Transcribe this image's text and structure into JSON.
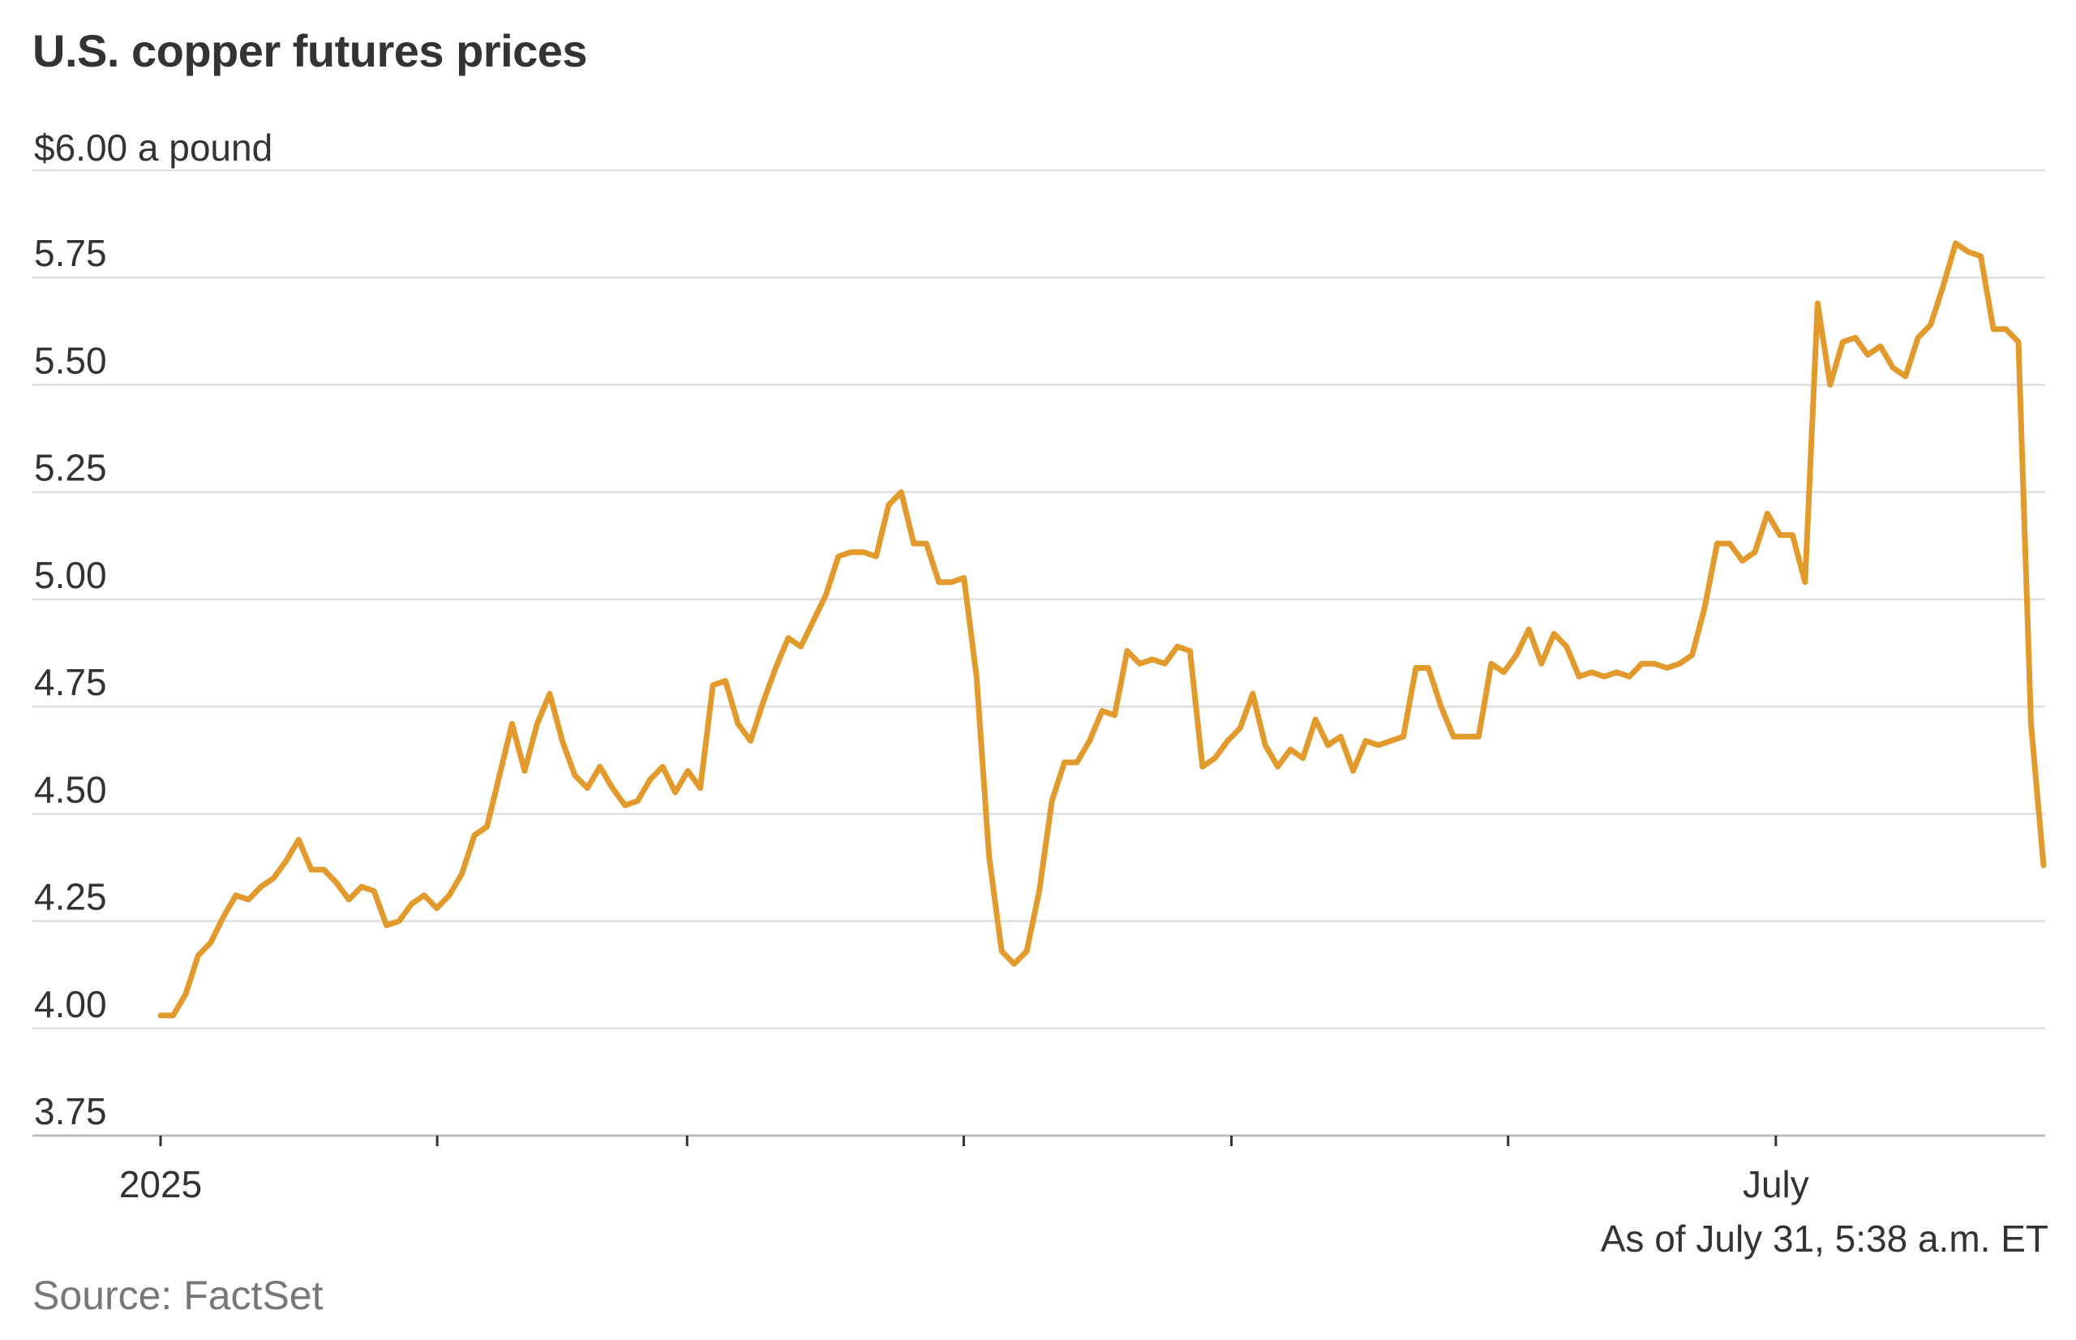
{
  "chart_data": {
    "type": "line",
    "title": "U.S. copper futures prices",
    "unit_label": "$6.00 a pound",
    "y_ticks": [
      "5.75",
      "5.50",
      "5.25",
      "5.00",
      "4.75",
      "4.50",
      "4.25",
      "4.00",
      "3.75"
    ],
    "y_tick_values": [
      5.75,
      5.5,
      5.25,
      5.0,
      4.75,
      4.5,
      4.25,
      4.0,
      3.75
    ],
    "top_gridline_value": 6.0,
    "ylim": [
      3.75,
      6.0
    ],
    "x_tick_labels": [
      "2025",
      "July"
    ],
    "x_range": [
      "2025-01-01",
      "2025-07-31"
    ],
    "x_tick_dates": [
      "2025-01-01",
      "2025-02-01",
      "2025-03-01",
      "2025-04-01",
      "2025-05-01",
      "2025-06-01",
      "2025-07-01"
    ],
    "grid": true,
    "series": [
      {
        "color": "#e39a2c",
        "values": [
          4.03,
          4.03,
          4.08,
          4.17,
          4.2,
          4.26,
          4.31,
          4.3,
          4.33,
          4.35,
          4.39,
          4.44,
          4.37,
          4.37,
          4.34,
          4.3,
          4.33,
          4.32,
          4.24,
          4.25,
          4.29,
          4.31,
          4.28,
          4.31,
          4.36,
          4.45,
          4.47,
          4.59,
          4.71,
          4.6,
          4.71,
          4.78,
          4.67,
          4.59,
          4.56,
          4.61,
          4.56,
          4.52,
          4.53,
          4.58,
          4.61,
          4.55,
          4.6,
          4.56,
          4.8,
          4.81,
          4.71,
          4.67,
          4.76,
          4.84,
          4.91,
          4.89,
          4.95,
          5.01,
          5.1,
          5.11,
          5.11,
          5.1,
          5.22,
          5.25,
          5.13,
          5.13,
          5.04,
          5.04,
          5.05,
          4.82,
          4.4,
          4.18,
          4.15,
          4.18,
          4.32,
          4.53,
          4.62,
          4.62,
          4.67,
          4.74,
          4.73,
          4.88,
          4.85,
          4.86,
          4.85,
          4.89,
          4.88,
          4.61,
          4.63,
          4.67,
          4.7,
          4.78,
          4.66,
          4.61,
          4.65,
          4.63,
          4.72,
          4.66,
          4.68,
          4.6,
          4.67,
          4.66,
          4.67,
          4.68,
          4.84,
          4.84,
          4.75,
          4.68,
          4.68,
          4.68,
          4.85,
          4.83,
          4.87,
          4.93,
          4.85,
          4.92,
          4.89,
          4.82,
          4.83,
          4.82,
          4.83,
          4.82,
          4.85,
          4.85,
          4.84,
          4.85,
          4.87,
          4.98,
          5.13,
          5.13,
          5.09,
          5.11,
          5.2,
          5.15,
          5.15,
          5.04,
          5.69,
          5.5,
          5.6,
          5.61,
          5.57,
          5.59,
          5.54,
          5.52,
          5.61,
          5.64,
          5.73,
          5.83,
          5.81,
          5.8,
          5.63,
          5.63,
          5.6,
          4.71,
          4.38
        ]
      }
    ]
  },
  "note": "As of July 31, 5:38 a.m. ET",
  "source": "Source: FactSet"
}
